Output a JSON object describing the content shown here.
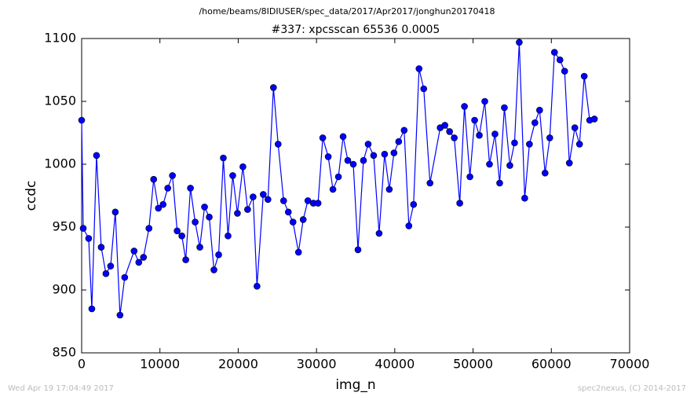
{
  "chart_data": {
    "type": "line",
    "suptitle": "/home/beams/8IDIUSER/spec_data/2017/Apr2017/jonghun20170418",
    "title": "#337: xpcsscan 65536 0.0005",
    "x_label": "img_n",
    "y_label": "ccdc",
    "footer_left": "Wed Apr 19 17:04:49 2017",
    "footer_right": "spec2nexus, (C) 2014-2017",
    "xlim": [
      0,
      70000
    ],
    "xticks": [
      0,
      10000,
      20000,
      30000,
      40000,
      50000,
      60000,
      70000
    ],
    "ylim": [
      850,
      1100
    ],
    "yticks": [
      850,
      900,
      950,
      1000,
      1050,
      1100
    ],
    "x": [
      0,
      200,
      900,
      1300,
      1900,
      2500,
      3100,
      3700,
      4300,
      4900,
      5500,
      6700,
      7300,
      7900,
      8600,
      9200,
      9800,
      10400,
      11000,
      11600,
      12200,
      12800,
      13300,
      13900,
      14500,
      15100,
      15700,
      16300,
      16900,
      17500,
      18100,
      18700,
      19300,
      19900,
      20600,
      21200,
      21900,
      22400,
      23200,
      23800,
      24500,
      25100,
      25800,
      26400,
      27000,
      27700,
      28300,
      28900,
      29600,
      30200,
      30800,
      31500,
      32100,
      32800,
      33400,
      34000,
      34700,
      35300,
      36000,
      36600,
      37300,
      38000,
      38700,
      39300,
      39900,
      40500,
      41200,
      41800,
      42400,
      43100,
      43700,
      44500,
      45800,
      46400,
      47000,
      47600,
      48300,
      48900,
      49600,
      50200,
      50800,
      51500,
      52100,
      52800,
      53400,
      54000,
      54700,
      55300,
      55900,
      56600,
      57200,
      57900,
      58500,
      59200,
      59800,
      60400,
      61100,
      61700,
      62300,
      63000,
      63600,
      64200,
      64900,
      65500
    ],
    "series": [
      {
        "name": "ccdc",
        "color": "#0000ff",
        "values": [
          1035,
          949,
          941,
          885,
          1007,
          934,
          913,
          919,
          962,
          880,
          910,
          931,
          922,
          926,
          949,
          988,
          965,
          968,
          981,
          991,
          947,
          943,
          924,
          981,
          954,
          934,
          966,
          958,
          916,
          928,
          1005,
          943,
          991,
          961,
          998,
          964,
          974,
          903,
          976,
          972,
          1061,
          1016,
          971,
          962,
          954,
          930,
          956,
          971,
          969,
          969,
          1021,
          1006,
          980,
          990,
          1022,
          1003,
          1000,
          932,
          1003,
          1016,
          1007,
          945,
          1008,
          980,
          1009,
          1018,
          1027,
          951,
          968,
          1076,
          1060,
          985,
          1029,
          1031,
          1026,
          1021,
          969,
          1046,
          990,
          1035,
          1023,
          1050,
          1000,
          1024,
          985,
          1045,
          999,
          1017,
          1097,
          973,
          1016,
          1033,
          1043,
          993,
          1021,
          1089,
          1083,
          1074,
          1001,
          1029,
          1016,
          1070,
          1035,
          1036
        ]
      }
    ]
  }
}
